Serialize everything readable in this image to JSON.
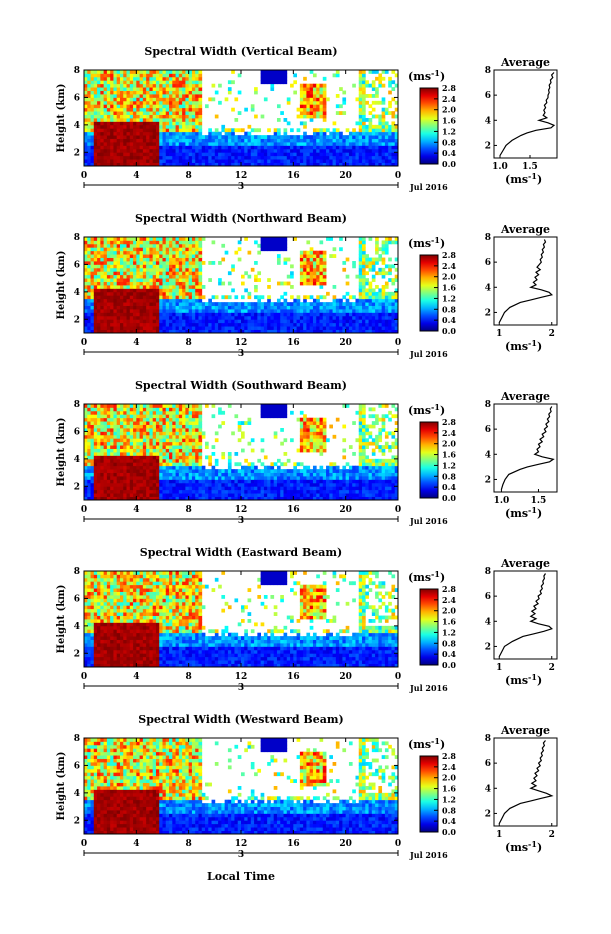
{
  "figure": {
    "bottom_xlabel": "Local Time",
    "day_label": "3",
    "date_label": "Jul 2016",
    "colorbar_unit": "(ms",
    "colorbar_unit_sup": "-1",
    "avg_unit": "(ms",
    "avg_unit_sup": "-1",
    "avg_title": "Average",
    "ylabel": "Height (km)"
  },
  "chart_data": [
    {
      "type": "heatmap",
      "title": "Spectral Width (Vertical Beam)",
      "ylabel": "Height (km)",
      "x_ticks": [
        "0",
        "4",
        "8",
        "12",
        "16",
        "20",
        "0"
      ],
      "y_ticks": [
        "2",
        "4",
        "6",
        "8"
      ],
      "xlim": [
        0,
        24
      ],
      "ylim": [
        1,
        8
      ],
      "colorbar": {
        "unit": "ms^-1",
        "ticks": [
          "0.0",
          "0.4",
          "0.8",
          "1.2",
          "1.6",
          "2.0",
          "2.4",
          "2.8"
        ],
        "range": [
          0,
          2.8
        ]
      },
      "average_profile": {
        "x_ticks": [
          "1.0",
          "1.5"
        ],
        "xlim": [
          0.9,
          1.95
        ],
        "y_ticks": [
          "2",
          "4",
          "6",
          "8"
        ],
        "ylim": [
          1,
          8
        ],
        "height": [
          1.2,
          1.6,
          2.0,
          2.4,
          2.8,
          3.0,
          3.2,
          3.4,
          3.6,
          3.8,
          4.0,
          4.2,
          4.4,
          4.6,
          4.8,
          5.0,
          5.2,
          5.4,
          5.6,
          5.8,
          6.0,
          6.2,
          6.4,
          6.6,
          6.8,
          7.0,
          7.2,
          7.4,
          7.6,
          7.8
        ],
        "width": [
          1.0,
          1.05,
          1.1,
          1.2,
          1.35,
          1.45,
          1.6,
          1.85,
          1.9,
          1.8,
          1.65,
          1.78,
          1.72,
          1.75,
          1.73,
          1.76,
          1.74,
          1.78,
          1.77,
          1.8,
          1.8,
          1.82,
          1.81,
          1.83,
          1.82,
          1.85,
          1.84,
          1.88,
          1.86,
          1.9
        ]
      }
    },
    {
      "type": "heatmap",
      "title": "Spectral Width (Northward Beam)",
      "ylabel": "Height (km)",
      "x_ticks": [
        "0",
        "4",
        "8",
        "12",
        "16",
        "20",
        "0"
      ],
      "y_ticks": [
        "2",
        "4",
        "6",
        "8"
      ],
      "xlim": [
        0,
        24
      ],
      "ylim": [
        1,
        8
      ],
      "colorbar": {
        "unit": "ms^-1",
        "ticks": [
          "0.0",
          "0.4",
          "0.8",
          "1.2",
          "1.6",
          "2.0",
          "2.4",
          "2.8"
        ],
        "range": [
          0,
          2.8
        ]
      },
      "average_profile": {
        "x_ticks": [
          "1",
          "2"
        ],
        "xlim": [
          0.9,
          2.1
        ],
        "y_ticks": [
          "2",
          "4",
          "6",
          "8"
        ],
        "ylim": [
          1,
          8
        ],
        "height": [
          1.2,
          1.6,
          2.0,
          2.4,
          2.8,
          3.0,
          3.2,
          3.4,
          3.6,
          3.8,
          4.0,
          4.2,
          4.4,
          4.6,
          4.8,
          5.0,
          5.2,
          5.4,
          5.6,
          5.8,
          6.0,
          6.2,
          6.4,
          6.6,
          6.8,
          7.0,
          7.2,
          7.4,
          7.6,
          7.8
        ],
        "width": [
          1.0,
          1.05,
          1.1,
          1.2,
          1.4,
          1.6,
          1.8,
          2.0,
          1.95,
          1.8,
          1.6,
          1.7,
          1.65,
          1.72,
          1.68,
          1.75,
          1.7,
          1.78,
          1.72,
          1.76,
          1.8,
          1.78,
          1.82,
          1.8,
          1.84,
          1.82,
          1.86,
          1.84,
          1.88,
          1.86
        ]
      }
    },
    {
      "type": "heatmap",
      "title": "Spectral Width (Southward Beam)",
      "ylabel": "Height (km)",
      "x_ticks": [
        "0",
        "4",
        "8",
        "12",
        "16",
        "20",
        "0"
      ],
      "y_ticks": [
        "2",
        "4",
        "6",
        "8"
      ],
      "xlim": [
        0,
        24
      ],
      "ylim": [
        1,
        8
      ],
      "colorbar": {
        "unit": "ms^-1",
        "ticks": [
          "0.0",
          "0.4",
          "0.8",
          "1.2",
          "1.6",
          "2.0",
          "2.4",
          "2.8"
        ],
        "range": [
          0,
          2.8
        ]
      },
      "average_profile": {
        "x_ticks": [
          "1.0",
          "1.5"
        ],
        "xlim": [
          0.9,
          1.75
        ],
        "y_ticks": [
          "2",
          "4",
          "6",
          "8"
        ],
        "ylim": [
          1,
          8
        ],
        "height": [
          1.2,
          1.6,
          2.0,
          2.4,
          2.8,
          3.0,
          3.2,
          3.4,
          3.6,
          3.8,
          4.0,
          4.2,
          4.4,
          4.6,
          4.8,
          5.0,
          5.2,
          5.4,
          5.6,
          5.8,
          6.0,
          6.2,
          6.4,
          6.6,
          6.8,
          7.0,
          7.2,
          7.4,
          7.6,
          7.8
        ],
        "width": [
          1.0,
          1.02,
          1.05,
          1.1,
          1.25,
          1.35,
          1.5,
          1.65,
          1.7,
          1.55,
          1.45,
          1.5,
          1.48,
          1.52,
          1.5,
          1.55,
          1.52,
          1.57,
          1.55,
          1.6,
          1.58,
          1.62,
          1.6,
          1.64,
          1.62,
          1.65,
          1.64,
          1.67,
          1.66,
          1.68
        ]
      }
    },
    {
      "type": "heatmap",
      "title": "Spectral Width (Eastward Beam)",
      "ylabel": "Height (km)",
      "x_ticks": [
        "0",
        "4",
        "8",
        "12",
        "16",
        "20",
        "0"
      ],
      "y_ticks": [
        "2",
        "4",
        "6",
        "8"
      ],
      "xlim": [
        0,
        24
      ],
      "ylim": [
        1,
        8
      ],
      "colorbar": {
        "unit": "ms^-1",
        "ticks": [
          "0.0",
          "0.4",
          "0.8",
          "1.2",
          "1.6",
          "2.0",
          "2.4",
          "2.8"
        ],
        "range": [
          0,
          2.8
        ]
      },
      "average_profile": {
        "x_ticks": [
          "1",
          "2"
        ],
        "xlim": [
          0.9,
          2.1
        ],
        "y_ticks": [
          "2",
          "4",
          "6",
          "8"
        ],
        "ylim": [
          1,
          8
        ],
        "height": [
          1.2,
          1.6,
          2.0,
          2.4,
          2.8,
          3.0,
          3.2,
          3.4,
          3.6,
          3.8,
          4.0,
          4.2,
          4.4,
          4.6,
          4.8,
          5.0,
          5.2,
          5.4,
          5.6,
          5.8,
          6.0,
          6.2,
          6.4,
          6.6,
          6.8,
          7.0,
          7.2,
          7.4,
          7.6,
          7.8
        ],
        "width": [
          1.0,
          1.05,
          1.1,
          1.25,
          1.45,
          1.65,
          1.85,
          2.0,
          1.95,
          1.75,
          1.6,
          1.7,
          1.6,
          1.68,
          1.62,
          1.7,
          1.66,
          1.74,
          1.7,
          1.76,
          1.74,
          1.8,
          1.78,
          1.82,
          1.8,
          1.84,
          1.83,
          1.86,
          1.85,
          1.88
        ]
      }
    },
    {
      "type": "heatmap",
      "title": "Spectral Width (Westward Beam)",
      "ylabel": "Height (km)",
      "x_ticks": [
        "0",
        "4",
        "8",
        "12",
        "16",
        "20",
        "0"
      ],
      "y_ticks": [
        "2",
        "4",
        "6",
        "8"
      ],
      "xlim": [
        0,
        24
      ],
      "ylim": [
        1,
        8
      ],
      "colorbar": {
        "unit": "ms^-1",
        "ticks": [
          "0.0",
          "0.4",
          "0.8",
          "1.2",
          "1.6",
          "2.0",
          "2.4",
          "2.8"
        ],
        "range": [
          0,
          2.8
        ]
      },
      "average_profile": {
        "x_ticks": [
          "1",
          "2"
        ],
        "xlim": [
          0.9,
          2.1
        ],
        "y_ticks": [
          "2",
          "4",
          "6",
          "8"
        ],
        "ylim": [
          1,
          8
        ],
        "height": [
          1.2,
          1.6,
          2.0,
          2.4,
          2.8,
          3.0,
          3.2,
          3.4,
          3.6,
          3.8,
          4.0,
          4.2,
          4.4,
          4.6,
          4.8,
          5.0,
          5.2,
          5.4,
          5.6,
          5.8,
          6.0,
          6.2,
          6.4,
          6.6,
          6.8,
          7.0,
          7.2,
          7.4,
          7.6,
          7.8
        ],
        "width": [
          1.0,
          1.05,
          1.1,
          1.2,
          1.4,
          1.6,
          1.8,
          2.0,
          1.9,
          1.75,
          1.6,
          1.7,
          1.62,
          1.7,
          1.66,
          1.72,
          1.68,
          1.75,
          1.72,
          1.78,
          1.75,
          1.8,
          1.78,
          1.82,
          1.8,
          1.84,
          1.82,
          1.86,
          1.84,
          1.88
        ]
      }
    }
  ]
}
